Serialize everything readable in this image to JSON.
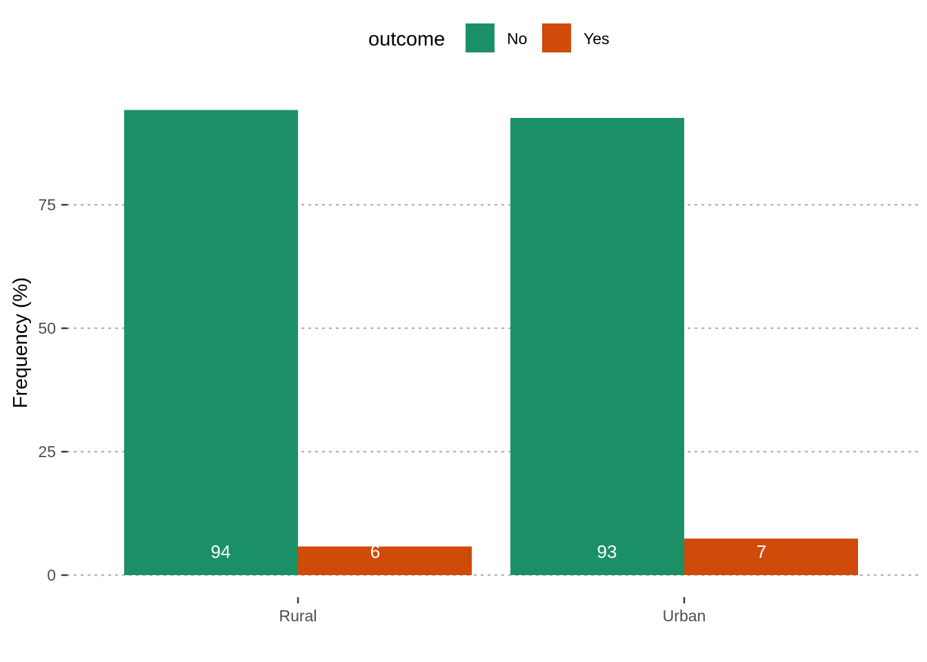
{
  "chart_data": {
    "type": "bar",
    "layout": "grouped",
    "title": "",
    "xlabel": "",
    "ylabel": "Frequency (%)",
    "categories": [
      "Rural",
      "Urban"
    ],
    "series": [
      {
        "name": "No",
        "color": "#1b9066",
        "values": [
          94.2,
          92.6
        ],
        "labels": [
          "94",
          "93"
        ]
      },
      {
        "name": "Yes",
        "color": "#d04a0a",
        "values": [
          5.8,
          7.4
        ],
        "labels": [
          "6",
          "7"
        ]
      }
    ],
    "ylim": [
      0,
      100
    ],
    "yticks": [
      0,
      25,
      50,
      75
    ],
    "ytick_labels": [
      "0",
      "25",
      "50",
      "75"
    ],
    "grid": "horizontal dotted",
    "legend": {
      "title": "outcome",
      "placement": "top"
    }
  }
}
